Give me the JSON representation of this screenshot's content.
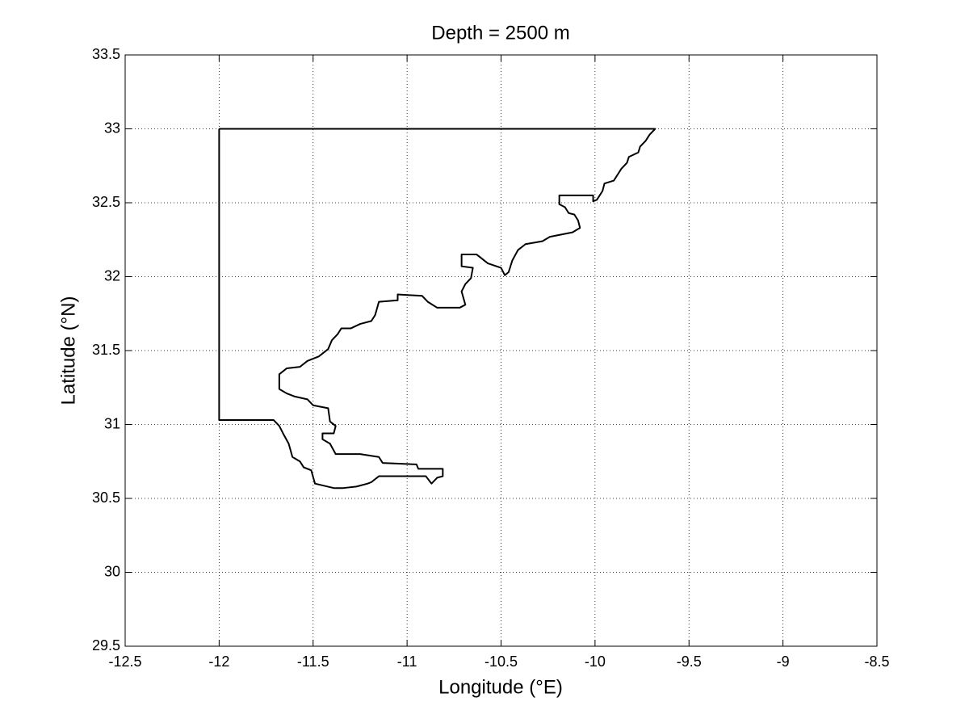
{
  "chart_data": {
    "type": "line",
    "title": "Depth = 2500 m",
    "xlabel": "Longitude (°E)",
    "ylabel": "Latitude (°N)",
    "xlim": [
      -12.5,
      -8.5
    ],
    "ylim": [
      29.5,
      33.5
    ],
    "xticks": [
      -12.5,
      -12,
      -11.5,
      -11,
      -10.5,
      -10,
      -9.5,
      -9,
      -8.5
    ],
    "yticks": [
      29.5,
      30,
      30.5,
      31,
      31.5,
      32,
      32.5,
      33,
      33.5
    ],
    "grid": true,
    "series": [
      {
        "color": "#000000",
        "x": [
          -12,
          -9.68,
          -9.71,
          -9.73,
          -9.76,
          -9.77,
          -9.82,
          -9.83,
          -9.86,
          -9.88,
          -9.9,
          -9.95,
          -9.96,
          -9.99,
          -10.01,
          -10.01,
          -10.19,
          -10.19,
          -10.16,
          -10.14,
          -10.11,
          -10.09,
          -10.08,
          -10.12,
          -10.24,
          -10.28,
          -10.37,
          -10.41,
          -10.44,
          -10.46,
          -10.48,
          -10.5,
          -10.57,
          -10.61,
          -10.63,
          -10.71,
          -10.71,
          -10.65,
          -10.66,
          -10.69,
          -10.71,
          -10.69,
          -10.72,
          -10.84,
          -10.89,
          -10.92,
          -11.05,
          -11.05,
          -11.15,
          -11.17,
          -11.19,
          -11.25,
          -11.3,
          -11.35,
          -11.37,
          -11.4,
          -11.42,
          -11.47,
          -11.53,
          -11.57,
          -11.64,
          -11.68,
          -11.68,
          -11.64,
          -11.6,
          -11.53,
          -11.5,
          -11.42,
          -11.41,
          -11.38,
          -11.39,
          -11.45,
          -11.45,
          -11.41,
          -11.38,
          -11.25,
          -11.15,
          -11.13,
          -10.95,
          -10.94,
          -10.81,
          -10.81,
          -10.84,
          -10.87,
          -10.9,
          -11.15,
          -11.19,
          -11.21,
          -11.27,
          -11.34,
          -11.39,
          -11.49,
          -11.51,
          -11.55,
          -11.57,
          -11.61,
          -11.63,
          -11.66,
          -11.68,
          -11.71,
          -12,
          -12
        ],
        "values": [
          33,
          33,
          32.96,
          32.92,
          32.88,
          32.84,
          32.81,
          32.77,
          32.73,
          32.69,
          32.65,
          32.63,
          32.58,
          32.52,
          32.51,
          32.55,
          32.55,
          32.49,
          32.47,
          32.43,
          32.42,
          32.38,
          32.33,
          32.3,
          32.27,
          32.24,
          32.22,
          32.18,
          32.11,
          32.03,
          32.01,
          32.06,
          32.09,
          32.13,
          32.15,
          32.15,
          32.07,
          32.06,
          31.99,
          31.95,
          31.9,
          31.81,
          31.79,
          31.79,
          31.83,
          31.87,
          31.88,
          31.84,
          31.83,
          31.74,
          31.7,
          31.68,
          31.65,
          31.65,
          31.61,
          31.57,
          31.51,
          31.46,
          31.43,
          31.39,
          31.38,
          31.34,
          31.24,
          31.21,
          31.19,
          31.17,
          31.13,
          31.11,
          31.02,
          30.99,
          30.94,
          30.94,
          30.9,
          30.87,
          30.8,
          30.8,
          30.78,
          30.74,
          30.73,
          30.7,
          30.7,
          30.65,
          30.64,
          30.6,
          30.65,
          30.65,
          30.61,
          30.6,
          30.58,
          30.57,
          30.57,
          30.6,
          30.69,
          30.71,
          30.75,
          30.78,
          30.87,
          30.94,
          30.99,
          31.03,
          31.03,
          33
        ]
      }
    ]
  }
}
